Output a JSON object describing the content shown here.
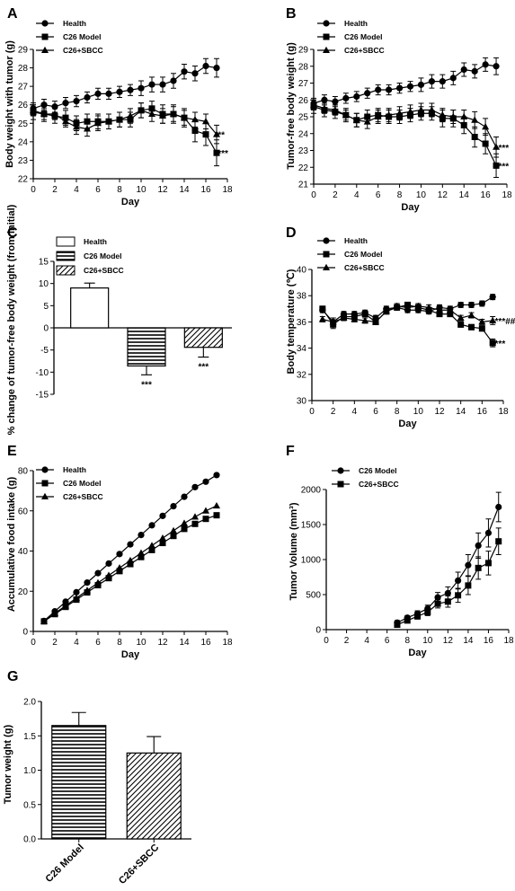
{
  "chart_data": [
    {
      "id": "A",
      "panel_label": "A",
      "type": "line",
      "xlabel": "Day",
      "ylabel": "Body weight with tumor (g)",
      "xlim": [
        0,
        18
      ],
      "ylim": [
        22,
        29
      ],
      "xticks": [
        0,
        2,
        4,
        6,
        8,
        10,
        12,
        14,
        16,
        18
      ],
      "yticks": [
        22,
        23,
        24,
        25,
        26,
        27,
        28,
        29
      ],
      "legend": "top-left",
      "series": [
        {
          "name": "Health",
          "marker": "circle",
          "x": [
            0,
            1,
            2,
            3,
            4,
            5,
            6,
            7,
            8,
            9,
            10,
            11,
            12,
            13,
            14,
            15,
            16,
            17
          ],
          "y": [
            25.8,
            26.0,
            25.9,
            26.1,
            26.2,
            26.4,
            26.6,
            26.6,
            26.7,
            26.8,
            26.9,
            27.1,
            27.1,
            27.3,
            27.8,
            27.7,
            28.1,
            28.0
          ],
          "err": [
            0.3,
            0.3,
            0.3,
            0.3,
            0.3,
            0.3,
            0.3,
            0.3,
            0.3,
            0.3,
            0.4,
            0.4,
            0.4,
            0.4,
            0.4,
            0.4,
            0.4,
            0.5
          ]
        },
        {
          "name": "C26 Model",
          "marker": "square",
          "x": [
            0,
            1,
            2,
            3,
            4,
            5,
            6,
            7,
            8,
            9,
            10,
            11,
            12,
            13,
            14,
            15,
            16,
            17
          ],
          "y": [
            25.6,
            25.5,
            25.4,
            25.3,
            25.0,
            25.1,
            25.1,
            25.1,
            25.2,
            25.2,
            25.7,
            25.8,
            25.5,
            25.5,
            25.3,
            24.6,
            24.4,
            23.4
          ],
          "err": [
            0.4,
            0.4,
            0.4,
            0.4,
            0.4,
            0.4,
            0.4,
            0.4,
            0.4,
            0.4,
            0.4,
            0.4,
            0.5,
            0.5,
            0.5,
            0.6,
            0.6,
            0.7
          ]
        },
        {
          "name": "C26+SBCC",
          "marker": "triangle",
          "x": [
            0,
            1,
            2,
            3,
            4,
            5,
            6,
            7,
            8,
            9,
            10,
            11,
            12,
            13,
            14,
            15,
            16,
            17
          ],
          "y": [
            25.7,
            25.5,
            25.5,
            25.1,
            24.8,
            24.7,
            25.0,
            25.1,
            25.2,
            25.4,
            25.7,
            25.5,
            25.4,
            25.5,
            25.3,
            25.2,
            25.1,
            24.4
          ],
          "err": [
            0.3,
            0.3,
            0.3,
            0.3,
            0.4,
            0.4,
            0.4,
            0.4,
            0.4,
            0.4,
            0.4,
            0.4,
            0.4,
            0.4,
            0.4,
            0.4,
            0.4,
            0.5
          ]
        }
      ],
      "annotations": [
        {
          "text": "**",
          "x": 17.1,
          "y": 24.4
        },
        {
          "text": "***",
          "x": 17.1,
          "y": 23.4
        }
      ]
    },
    {
      "id": "B",
      "panel_label": "B",
      "type": "line",
      "xlabel": "Day",
      "ylabel": "Tumor-free body weight (g)",
      "xlim": [
        0,
        18
      ],
      "ylim": [
        21,
        29
      ],
      "xticks": [
        0,
        2,
        4,
        6,
        8,
        10,
        12,
        14,
        16,
        18
      ],
      "yticks": [
        21,
        22,
        23,
        24,
        25,
        26,
        27,
        28,
        29
      ],
      "legend": "top-left",
      "series": [
        {
          "name": "Health",
          "marker": "circle",
          "x": [
            0,
            1,
            2,
            3,
            4,
            5,
            6,
            7,
            8,
            9,
            10,
            11,
            12,
            13,
            14,
            15,
            16,
            17
          ],
          "y": [
            25.8,
            26.0,
            25.9,
            26.1,
            26.2,
            26.4,
            26.6,
            26.6,
            26.7,
            26.8,
            26.9,
            27.1,
            27.1,
            27.3,
            27.8,
            27.7,
            28.1,
            28.0
          ],
          "err": [
            0.3,
            0.3,
            0.3,
            0.3,
            0.3,
            0.3,
            0.3,
            0.3,
            0.3,
            0.3,
            0.4,
            0.4,
            0.4,
            0.4,
            0.4,
            0.4,
            0.4,
            0.5
          ]
        },
        {
          "name": "C26 Model",
          "marker": "square",
          "x": [
            0,
            1,
            2,
            3,
            4,
            5,
            6,
            7,
            8,
            9,
            10,
            11,
            12,
            13,
            14,
            15,
            16,
            17
          ],
          "y": [
            25.6,
            25.4,
            25.3,
            25.1,
            24.8,
            25.0,
            25.1,
            25.0,
            25.0,
            25.1,
            25.2,
            25.2,
            24.9,
            24.9,
            24.5,
            23.8,
            23.4,
            22.1
          ],
          "err": [
            0.4,
            0.4,
            0.4,
            0.4,
            0.4,
            0.4,
            0.4,
            0.4,
            0.4,
            0.4,
            0.4,
            0.4,
            0.5,
            0.5,
            0.5,
            0.6,
            0.6,
            0.7
          ]
        },
        {
          "name": "C26+SBCC",
          "marker": "triangle",
          "x": [
            0,
            1,
            2,
            3,
            4,
            5,
            6,
            7,
            8,
            9,
            10,
            11,
            12,
            13,
            14,
            15,
            16,
            17
          ],
          "y": [
            25.7,
            25.5,
            25.4,
            25.1,
            24.8,
            24.7,
            25.0,
            25.1,
            25.2,
            25.3,
            25.4,
            25.4,
            25.1,
            25.0,
            25.0,
            24.8,
            24.4,
            23.2
          ],
          "err": [
            0.3,
            0.3,
            0.3,
            0.3,
            0.4,
            0.4,
            0.4,
            0.4,
            0.4,
            0.4,
            0.4,
            0.4,
            0.4,
            0.4,
            0.4,
            0.5,
            0.5,
            0.6
          ]
        }
      ],
      "annotations": [
        {
          "text": "***",
          "x": 17.2,
          "y": 23.2
        },
        {
          "text": "***",
          "x": 17.2,
          "y": 22.1
        }
      ]
    },
    {
      "id": "C",
      "panel_label": "C",
      "type": "bar",
      "xlabel": "",
      "ylabel": "% change of tumor-free body weight (from initial)",
      "ylim": [
        -15,
        15
      ],
      "yticks": [
        -15,
        -10,
        -5,
        0,
        5,
        10,
        15
      ],
      "legend": "top-right",
      "categories": [
        "Health",
        "C26 Model",
        "C26+SBCC"
      ],
      "values": [
        9.0,
        -8.6,
        -4.4
      ],
      "err": [
        1.1,
        2.0,
        2.2
      ],
      "patterns": [
        "none",
        "horizontal",
        "diagonal"
      ],
      "annotations": [
        {
          "text": "***",
          "bar": 1
        },
        {
          "text": "***",
          "bar": 2
        }
      ]
    },
    {
      "id": "D",
      "panel_label": "D",
      "type": "line",
      "xlabel": "Day",
      "ylabel": "Body temperature (℃)",
      "xlim": [
        0,
        18
      ],
      "ylim": [
        30,
        40
      ],
      "xticks": [
        0,
        2,
        4,
        6,
        8,
        10,
        12,
        14,
        16,
        18
      ],
      "yticks": [
        30,
        32,
        34,
        36,
        38,
        40
      ],
      "legend": "top-left",
      "series": [
        {
          "name": "Health",
          "marker": "circle",
          "x": [
            1,
            2,
            3,
            4,
            5,
            6,
            7,
            8,
            9,
            10,
            11,
            12,
            13,
            14,
            15,
            16,
            17
          ],
          "y": [
            36.9,
            36.0,
            36.6,
            36.6,
            36.7,
            36.3,
            37.0,
            37.1,
            36.9,
            36.9,
            36.8,
            37.1,
            37.0,
            37.3,
            37.3,
            37.4,
            37.9
          ],
          "err": [
            0.2,
            0.3,
            0.2,
            0.2,
            0.2,
            0.2,
            0.2,
            0.2,
            0.2,
            0.2,
            0.2,
            0.2,
            0.2,
            0.2,
            0.2,
            0.2,
            0.2
          ]
        },
        {
          "name": "C26 Model",
          "marker": "square",
          "x": [
            1,
            2,
            3,
            4,
            5,
            6,
            7,
            8,
            9,
            10,
            11,
            12,
            13,
            14,
            15,
            16,
            17
          ],
          "y": [
            37.0,
            35.8,
            36.4,
            36.4,
            36.6,
            36.0,
            36.8,
            37.1,
            37.3,
            37.1,
            36.9,
            36.6,
            36.6,
            35.8,
            35.6,
            35.5,
            34.4
          ],
          "err": [
            0.2,
            0.3,
            0.2,
            0.2,
            0.2,
            0.2,
            0.2,
            0.2,
            0.2,
            0.2,
            0.2,
            0.2,
            0.2,
            0.2,
            0.2,
            0.2,
            0.3
          ]
        },
        {
          "name": "C26+SBCC",
          "marker": "triangle",
          "x": [
            1,
            2,
            3,
            4,
            5,
            6,
            7,
            8,
            9,
            10,
            11,
            12,
            13,
            14,
            15,
            16,
            17
          ],
          "y": [
            36.2,
            36.0,
            36.3,
            36.2,
            36.1,
            36.0,
            36.8,
            37.2,
            37.1,
            37.2,
            37.1,
            36.9,
            36.9,
            36.3,
            36.5,
            36.0,
            36.1
          ],
          "err": [
            0.2,
            0.3,
            0.2,
            0.2,
            0.2,
            0.2,
            0.2,
            0.2,
            0.2,
            0.2,
            0.2,
            0.2,
            0.2,
            0.2,
            0.2,
            0.2,
            0.3
          ]
        }
      ],
      "annotations": [
        {
          "text": "***##",
          "x": 17.2,
          "y": 36.1
        },
        {
          "text": "***",
          "x": 17.2,
          "y": 34.4
        }
      ]
    },
    {
      "id": "E",
      "panel_label": "E",
      "type": "line",
      "xlabel": "Day",
      "ylabel": "Accumulative food intake (g)",
      "xlim": [
        0,
        18
      ],
      "ylim": [
        0,
        80
      ],
      "xticks": [
        0,
        2,
        4,
        6,
        8,
        10,
        12,
        14,
        16,
        18
      ],
      "yticks": [
        0,
        20,
        40,
        60,
        80
      ],
      "legend": "top-left",
      "series": [
        {
          "name": "Health",
          "marker": "circle",
          "x": [
            1,
            2,
            3,
            4,
            5,
            6,
            7,
            8,
            9,
            10,
            11,
            12,
            13,
            14,
            15,
            16,
            17
          ],
          "y": [
            5.2,
            10.0,
            14.8,
            19.5,
            24.3,
            29.0,
            33.8,
            38.5,
            43.3,
            48.0,
            52.8,
            57.5,
            62.3,
            67.0,
            71.8,
            74.5,
            77.8
          ]
        },
        {
          "name": "C26 Model",
          "marker": "square",
          "x": [
            1,
            2,
            3,
            4,
            5,
            6,
            7,
            8,
            9,
            10,
            11,
            12,
            13,
            14,
            15,
            16,
            17
          ],
          "y": [
            5.0,
            8.6,
            12.2,
            15.8,
            19.4,
            23.0,
            26.5,
            30.0,
            33.5,
            37.0,
            40.5,
            44.0,
            47.5,
            51.0,
            53.5,
            56.0,
            57.8
          ]
        },
        {
          "name": "C26+SBCC",
          "marker": "triangle",
          "x": [
            1,
            2,
            3,
            4,
            5,
            6,
            7,
            8,
            9,
            10,
            11,
            12,
            13,
            14,
            15,
            16,
            17
          ],
          "y": [
            5.0,
            9.0,
            12.8,
            16.6,
            20.4,
            24.2,
            27.9,
            31.6,
            35.3,
            39.0,
            42.7,
            46.4,
            50.1,
            53.8,
            57.0,
            60.0,
            62.5
          ]
        }
      ]
    },
    {
      "id": "F",
      "panel_label": "F",
      "type": "line",
      "xlabel": "Day",
      "ylabel": "Tumor Volume (mm³)",
      "xlim": [
        0,
        18
      ],
      "ylim": [
        0,
        2000
      ],
      "xticks": [
        0,
        2,
        4,
        6,
        8,
        10,
        12,
        14,
        16,
        18
      ],
      "yticks": [
        0,
        500,
        1000,
        1500,
        2000
      ],
      "legend": "top-left",
      "series": [
        {
          "name": "C26 Model",
          "marker": "circle",
          "x": [
            7,
            8,
            9,
            10,
            11,
            12,
            13,
            14,
            15,
            16,
            17
          ],
          "y": [
            100,
            170,
            230,
            300,
            460,
            520,
            700,
            920,
            1200,
            1380,
            1750
          ],
          "err": [
            30,
            30,
            40,
            50,
            70,
            90,
            120,
            150,
            180,
            200,
            210
          ]
        },
        {
          "name": "C26+SBCC",
          "marker": "square",
          "x": [
            7,
            8,
            9,
            10,
            11,
            12,
            13,
            14,
            15,
            16,
            17
          ],
          "y": [
            70,
            130,
            190,
            250,
            370,
            400,
            490,
            630,
            880,
            950,
            1260
          ],
          "err": [
            30,
            30,
            40,
            50,
            60,
            80,
            100,
            130,
            160,
            170,
            190
          ]
        }
      ]
    },
    {
      "id": "G",
      "panel_label": "G",
      "type": "bar",
      "xlabel": "",
      "ylabel": "Tumor  weight (g)",
      "ylim": [
        0,
        2.0
      ],
      "yticks": [
        "0.0",
        "0.5",
        "1.0",
        "1.5",
        "2.0"
      ],
      "categories": [
        "C26 Model",
        "C26+SBCC"
      ],
      "values": [
        1.65,
        1.25
      ],
      "err": [
        0.19,
        0.24
      ],
      "patterns": [
        "horizontal",
        "diagonal"
      ]
    }
  ]
}
